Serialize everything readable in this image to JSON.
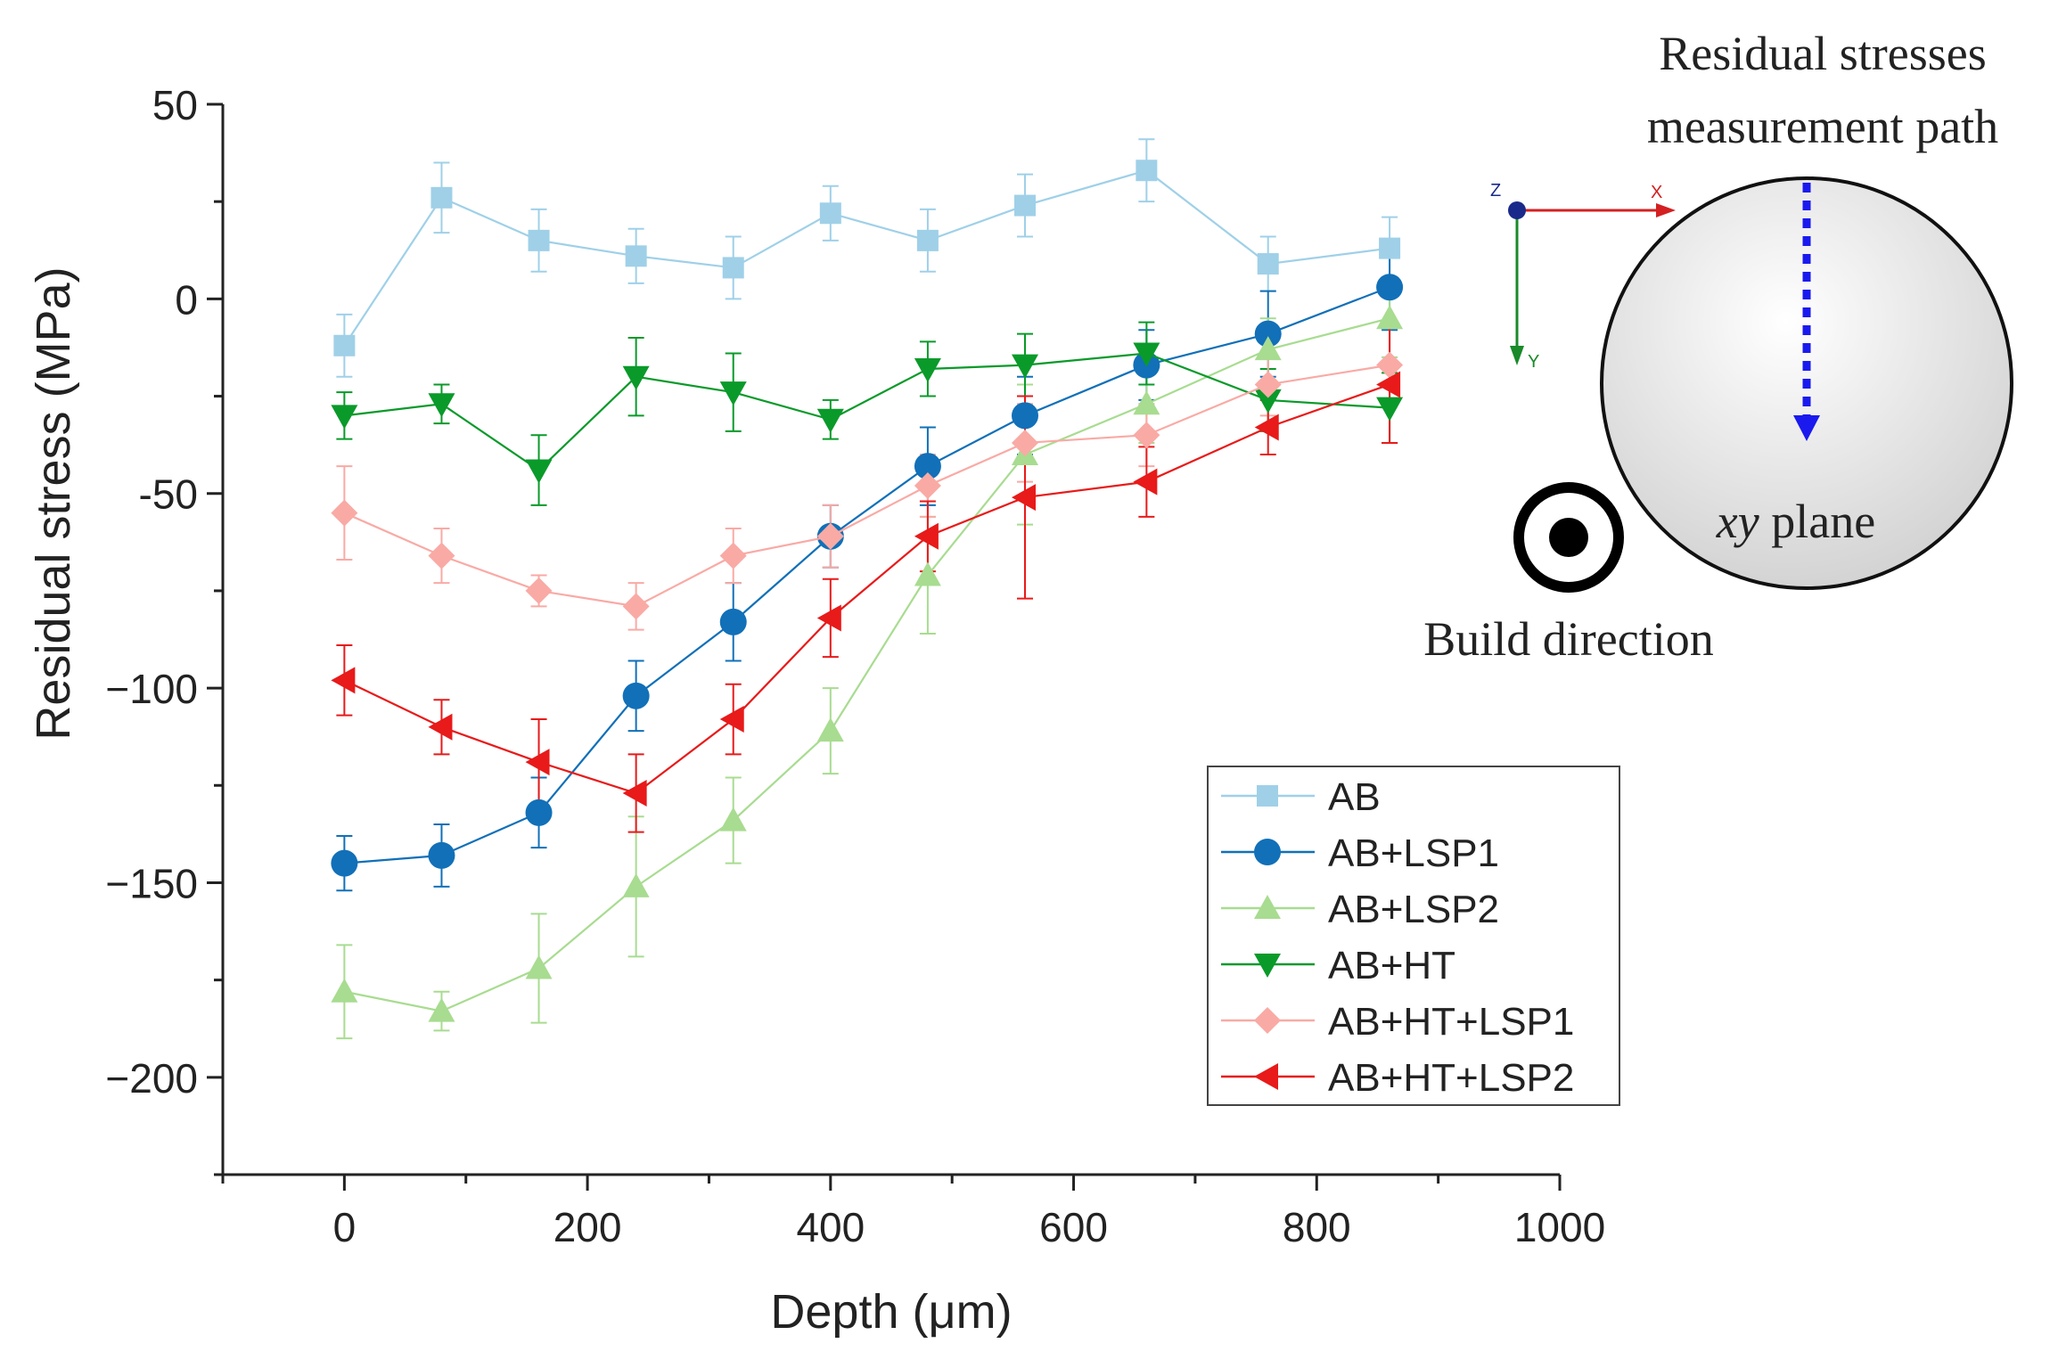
{
  "chart_data": {
    "type": "line",
    "xlabel": "Depth (μm)",
    "ylabel": "Residual stress (MPa)",
    "xlim": [
      -100,
      1000
    ],
    "ylim": [
      -225,
      50
    ],
    "xticks": [
      0,
      200,
      400,
      600,
      800,
      1000
    ],
    "yticks": [
      50,
      0,
      -50,
      -100,
      -150,
      -200
    ],
    "ytick_labels": [
      "50",
      "0",
      "-50",
      "−100",
      "−150",
      "−200"
    ],
    "x": [
      0,
      80,
      160,
      240,
      320,
      400,
      480,
      560,
      660,
      760,
      860
    ],
    "series": [
      {
        "name": "AB",
        "marker": "square",
        "color": "#9fd0e8",
        "values": [
          -12,
          26,
          15,
          11,
          8,
          22,
          15,
          24,
          33,
          9,
          13
        ],
        "errors": [
          8,
          9,
          8,
          7,
          8,
          7,
          8,
          8,
          8,
          7,
          8
        ]
      },
      {
        "name": "AB+LSP1",
        "marker": "circle",
        "color": "#1170b8",
        "values": [
          -145,
          -143,
          -132,
          -102,
          -83,
          -61,
          -43,
          -30,
          -17,
          -9,
          3
        ],
        "errors": [
          7,
          8,
          9,
          9,
          10,
          8,
          10,
          10,
          9,
          11,
          11
        ]
      },
      {
        "name": "AB+LSP2",
        "marker": "triangle-up",
        "color": "#a8dc90",
        "values": [
          -178,
          -183,
          -172,
          -151,
          -134,
          -111,
          -71,
          -40,
          -27,
          -13,
          -5
        ],
        "errors": [
          12,
          5,
          14,
          18,
          11,
          11,
          15,
          18,
          10,
          8,
          10
        ]
      },
      {
        "name": "AB+HT",
        "marker": "triangle-down",
        "color": "#0a9a2a",
        "values": [
          -30,
          -27,
          -44,
          -20,
          -24,
          -31,
          -18,
          -17,
          -14,
          -26,
          -28
        ],
        "errors": [
          6,
          5,
          9,
          10,
          10,
          5,
          7,
          8,
          8,
          8,
          9
        ]
      },
      {
        "name": "AB+HT+LSP1",
        "marker": "diamond",
        "color": "#f9aaa5",
        "values": [
          -55,
          -66,
          -75,
          -79,
          -66,
          -61,
          -48,
          -37,
          -35,
          -22,
          -17
        ],
        "errors": [
          12,
          7,
          4,
          6,
          7,
          8,
          8,
          10,
          8,
          8,
          10
        ]
      },
      {
        "name": "AB+HT+LSP2",
        "marker": "triangle-left",
        "color": "#e81a1a",
        "values": [
          -98,
          -110,
          -119,
          -127,
          -108,
          -82,
          -61,
          -51,
          -47,
          -33,
          -22
        ],
        "errors": [
          9,
          7,
          11,
          10,
          9,
          10,
          9,
          26,
          9,
          7,
          15
        ]
      }
    ],
    "legend_position": "lower-right"
  },
  "inset": {
    "title_line1": "Residual stresses",
    "title_line2": "measurement path",
    "plane_label_italic": "xy",
    "plane_label_rest": " plane",
    "build_direction_label": "Build direction",
    "axis_z": "Z",
    "axis_x": "X",
    "axis_y": "Y"
  }
}
